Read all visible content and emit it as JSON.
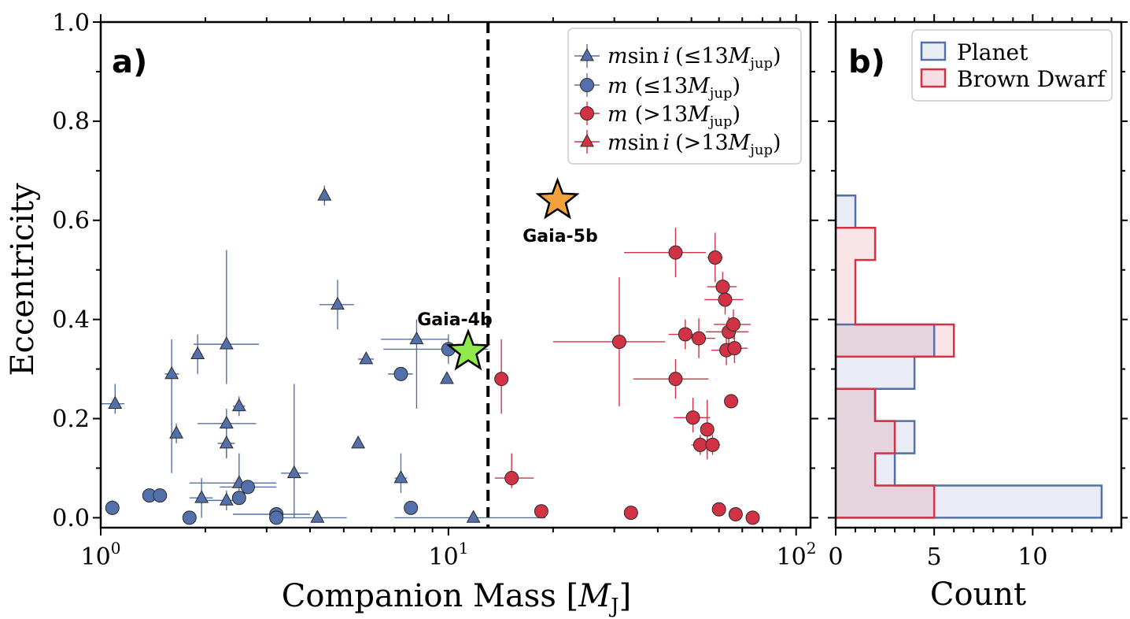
{
  "figure": {
    "colors": {
      "planet": "#5470ab",
      "brown_dwarf": "#d23244",
      "planet_fill": "#e9edf4",
      "bd_fill": "#f5dfe3",
      "overlap_fill": "#c9b1bf",
      "gaia4b_star": "#8fea4b",
      "gaia5b_star": "#f2a23a",
      "frame": "#000000"
    }
  },
  "chart_data": [
    {
      "id": "a",
      "type": "scatter",
      "panel_label": "a)",
      "xlabel_text": "Companion Mass [",
      "xlabel_italic": "M",
      "xlabel_sub": "J",
      "xlabel_end": "]",
      "ylabel": "Eccentricity",
      "xscale": "log",
      "xlim": [
        1,
        110
      ],
      "ylim": [
        -0.02,
        1.0
      ],
      "xticks": [
        {
          "base": "10",
          "exp": "0",
          "value": 1
        },
        {
          "base": "10",
          "exp": "1",
          "value": 10
        },
        {
          "base": "10",
          "exp": "2",
          "value": 100
        }
      ],
      "yticks": [
        "0.0",
        "0.2",
        "0.4",
        "0.6",
        "0.8",
        "1.0"
      ],
      "divider_mass": 13,
      "legend": {
        "placement": "top-right",
        "entries": [
          {
            "name": "m sin i (≤13 Mjup)",
            "pre": "m",
            "mid": "sin",
            "i": "i",
            "cond": "(≤13",
            "M": "M",
            "sub": "jup",
            "close": ")",
            "marker": "triangle",
            "color": "planet"
          },
          {
            "name": "m (≤13 Mjup)",
            "pre": "m",
            "mid": "",
            "i": "",
            "cond": "(≤13",
            "M": "M",
            "sub": "jup",
            "close": ")",
            "marker": "circle",
            "color": "planet"
          },
          {
            "name": "m (>13 Mjup)",
            "pre": "m",
            "mid": "",
            "i": "",
            "cond": "(>13",
            "M": "M",
            "sub": "jup",
            "close": ")",
            "marker": "circle",
            "color": "brown_dwarf"
          },
          {
            "name": "m sin i (>13 Mjup)",
            "pre": "m",
            "mid": "sin",
            "i": "i",
            "cond": "(>13",
            "M": "M",
            "sub": "jup",
            "close": ")",
            "marker": "triangle",
            "color": "brown_dwarf"
          }
        ]
      },
      "series": [
        {
          "name": "m sin i (≤13 Mjup)",
          "marker": "triangle",
          "color": "planet",
          "points": [
            {
              "x": 1.1,
              "y": 0.23,
              "xerr": [
                0.1,
                0.07
              ],
              "yerr": [
                0.02,
                0.04
              ]
            },
            {
              "x": 1.6,
              "y": 0.29,
              "xerr": [
                0.07,
                0.08
              ],
              "yerr": [
                0.2,
                0.07
              ]
            },
            {
              "x": 1.65,
              "y": 0.17,
              "xerr": [
                0.05,
                0.05
              ],
              "yerr": [
                0.02,
                0.02
              ]
            },
            {
              "x": 1.9,
              "y": 0.33,
              "xerr": [
                0.06,
                0.06
              ],
              "yerr": [
                0.04,
                0.04
              ]
            },
            {
              "x": 1.95,
              "y": 0.04,
              "xerr": [
                0.15,
                0.15
              ],
              "yerr": [
                0.04,
                0.04
              ]
            },
            {
              "x": 2.3,
              "y": 0.35,
              "xerr": [
                0.45,
                0.55
              ],
              "yerr": [
                0.08,
                0.19
              ]
            },
            {
              "x": 2.3,
              "y": 0.19,
              "xerr": [
                0.4,
                0.5
              ],
              "yerr": [
                0.07,
                0.03
              ]
            },
            {
              "x": 2.3,
              "y": 0.15,
              "xerr": [
                0.13,
                0.13
              ],
              "yerr": [
                0.03,
                0.03
              ]
            },
            {
              "x": 2.3,
              "y": 0.035,
              "xerr": [
                0.3,
                0.2
              ],
              "yerr": [
                0.02,
                0.02
              ]
            },
            {
              "x": 2.5,
              "y": 0.225,
              "xerr": [
                0.1,
                0.1
              ],
              "yerr": [
                0.02,
                0.02
              ]
            },
            {
              "x": 2.5,
              "y": 0.07,
              "xerr": [
                0.7,
                0.7
              ],
              "yerr": [
                0.03,
                0.06
              ]
            },
            {
              "x": 3.6,
              "y": 0.09,
              "xerr": [
                0.3,
                0.35
              ],
              "yerr": [
                0.09,
                0.18
              ]
            },
            {
              "x": 4.2,
              "y": 0.0,
              "xerr": [
                1.1,
                0.9
              ],
              "yerr": [
                0.0,
                0.0
              ]
            },
            {
              "x": 4.4,
              "y": 0.65,
              "xerr": [
                0.1,
                0.1
              ],
              "yerr": [
                0.02,
                0.02
              ]
            },
            {
              "x": 4.8,
              "y": 0.43,
              "xerr": [
                0.55,
                0.55
              ],
              "yerr": [
                0.05,
                0.05
              ]
            },
            {
              "x": 5.5,
              "y": 0.15,
              "xerr": [
                0.15,
                0.15
              ],
              "yerr": [
                0.01,
                0.01
              ]
            },
            {
              "x": 5.8,
              "y": 0.32,
              "xerr": [
                0.3,
                0.3
              ],
              "yerr": [
                0.01,
                0.01
              ]
            },
            {
              "x": 7.3,
              "y": 0.08,
              "xerr": [
                0.3,
                0.3
              ],
              "yerr": [
                0.03,
                0.05
              ]
            },
            {
              "x": 8.1,
              "y": 0.36,
              "xerr": [
                1.7,
                1.9
              ],
              "yerr": [
                0.14,
                0.04
              ]
            },
            {
              "x": 9.9,
              "y": 0.28,
              "xerr": [
                0.3,
                0.3
              ],
              "yerr": [
                0.01,
                0.01
              ]
            },
            {
              "x": 11.8,
              "y": 0.0,
              "xerr": [
                4.8,
                7.2
              ],
              "yerr": [
                0.0,
                0.0
              ]
            }
          ]
        },
        {
          "name": "m (≤13 Mjup)",
          "marker": "circle",
          "color": "planet",
          "points": [
            {
              "x": 1.08,
              "y": 0.02,
              "xerr": [
                0.03,
                0.03
              ],
              "yerr": [
                0.015,
                0.015
              ]
            },
            {
              "x": 1.38,
              "y": 0.045,
              "xerr": [
                0.06,
                0.06
              ],
              "yerr": [
                0.0,
                0.0
              ]
            },
            {
              "x": 1.48,
              "y": 0.045,
              "xerr": [
                0.04,
                0.04
              ],
              "yerr": [
                0.0,
                0.0
              ]
            },
            {
              "x": 1.8,
              "y": 0.0,
              "xerr": [
                0.05,
                0.05
              ],
              "yerr": [
                0.0,
                0.0
              ]
            },
            {
              "x": 2.5,
              "y": 0.04,
              "xerr": [
                0.1,
                0.1
              ],
              "yerr": [
                0.01,
                0.01
              ]
            },
            {
              "x": 2.65,
              "y": 0.062,
              "xerr": [
                0.45,
                0.55
              ],
              "yerr": [
                0.0,
                0.0
              ]
            },
            {
              "x": 3.2,
              "y": 0.007,
              "xerr": [
                0.8,
                0.8
              ],
              "yerr": [
                0.0,
                0.0
              ]
            },
            {
              "x": 3.2,
              "y": 0.0,
              "xerr": [
                0.15,
                0.15
              ],
              "yerr": [
                0.0,
                0.0
              ]
            },
            {
              "x": 7.3,
              "y": 0.29,
              "xerr": [
                0.6,
                0.6
              ],
              "yerr": [
                0.0,
                0.0
              ]
            },
            {
              "x": 7.8,
              "y": 0.02,
              "xerr": [
                0.1,
                0.1
              ],
              "yerr": [
                0.0,
                0.0
              ]
            },
            {
              "x": 10.0,
              "y": 0.34,
              "xerr": [
                3.5,
                3.0
              ],
              "yerr": [
                0.03,
                0.03
              ]
            }
          ]
        },
        {
          "name": "m (>13 Mjup)",
          "marker": "circle",
          "color": "brown_dwarf",
          "points": [
            {
              "x": 14.2,
              "y": 0.28,
              "xerr": [
                0.4,
                0.4
              ],
              "yerr": [
                0.07,
                0.08
              ]
            },
            {
              "x": 15.2,
              "y": 0.08,
              "xerr": [
                1.6,
                2.4
              ],
              "yerr": [
                0.02,
                0.05
              ]
            },
            {
              "x": 18.5,
              "y": 0.013,
              "xerr": [
                0.0,
                0.0
              ],
              "yerr": [
                0.0,
                0.0
              ]
            },
            {
              "x": 31.0,
              "y": 0.355,
              "xerr": [
                11.0,
                11.0
              ],
              "yerr": [
                0.13,
                0.13
              ]
            },
            {
              "x": 33.5,
              "y": 0.01,
              "xerr": [
                1.2,
                1.2
              ],
              "yerr": [
                0.0,
                0.0
              ]
            },
            {
              "x": 45.0,
              "y": 0.535,
              "xerr": [
                13.0,
                10.0
              ],
              "yerr": [
                0.05,
                0.05
              ]
            },
            {
              "x": 45.0,
              "y": 0.28,
              "xerr": [
                11.0,
                11.0
              ],
              "yerr": [
                0.04,
                0.04
              ]
            },
            {
              "x": 48.0,
              "y": 0.37,
              "xerr": [
                5.0,
                5.0
              ],
              "yerr": [
                0.03,
                0.03
              ]
            },
            {
              "x": 50.5,
              "y": 0.202,
              "xerr": [
                6.0,
                6.0
              ],
              "yerr": [
                0.03,
                0.04
              ]
            },
            {
              "x": 52.5,
              "y": 0.362,
              "xerr": [
                6.0,
                6.0
              ],
              "yerr": [
                0.04,
                0.04
              ]
            },
            {
              "x": 53.0,
              "y": 0.147,
              "xerr": [
                3.0,
                3.0
              ],
              "yerr": [
                0.02,
                0.02
              ]
            },
            {
              "x": 55.5,
              "y": 0.178,
              "xerr": [
                2.0,
                2.0
              ],
              "yerr": [
                0.06,
                0.06
              ]
            },
            {
              "x": 57.5,
              "y": 0.147,
              "xerr": [
                3.0,
                3.0
              ],
              "yerr": [
                0.02,
                0.02
              ]
            },
            {
              "x": 58.5,
              "y": 0.525,
              "xerr": [
                3.0,
                3.0
              ],
              "yerr": [
                0.05,
                0.05
              ]
            },
            {
              "x": 60.0,
              "y": 0.017,
              "xerr": [
                2.0,
                2.0
              ],
              "yerr": [
                0.0,
                0.0
              ]
            },
            {
              "x": 61.5,
              "y": 0.466,
              "xerr": [
                6.0,
                6.0
              ],
              "yerr": [
                0.03,
                0.03
              ]
            },
            {
              "x": 62.5,
              "y": 0.44,
              "xerr": [
                8.0,
                8.0
              ],
              "yerr": [
                0.03,
                0.03
              ]
            },
            {
              "x": 63.0,
              "y": 0.338,
              "xerr": [
                6.0,
                6.0
              ],
              "yerr": [
                0.03,
                0.03
              ]
            },
            {
              "x": 64.0,
              "y": 0.375,
              "xerr": [
                9.0,
                9.0
              ],
              "yerr": [
                0.03,
                0.03
              ]
            },
            {
              "x": 65.0,
              "y": 0.235,
              "xerr": [
                1.5,
                1.5
              ],
              "yerr": [
                0.0,
                0.0
              ]
            },
            {
              "x": 66.0,
              "y": 0.39,
              "xerr": [
                8.0,
                8.0
              ],
              "yerr": [
                0.03,
                0.03
              ]
            },
            {
              "x": 66.5,
              "y": 0.342,
              "xerr": [
                6.0,
                6.0
              ],
              "yerr": [
                0.03,
                0.03
              ]
            },
            {
              "x": 67.0,
              "y": 0.007,
              "xerr": [
                0.0,
                0.0
              ],
              "yerr": [
                0.0,
                0.0
              ]
            },
            {
              "x": 75.0,
              "y": 0.0,
              "xerr": [
                0.0,
                0.0
              ],
              "yerr": [
                0.0,
                0.0
              ]
            }
          ]
        },
        {
          "name": "m sin i (>13 Mjup)",
          "marker": "triangle",
          "color": "brown_dwarf",
          "points": []
        }
      ],
      "highlights": [
        {
          "name": "Gaia-4b",
          "x": 11.4,
          "y": 0.335,
          "color": "gaia4b_star",
          "label_position": "above-left"
        },
        {
          "name": "Gaia-5b",
          "x": 20.6,
          "y": 0.64,
          "color": "gaia5b_star",
          "label_position": "below"
        }
      ]
    },
    {
      "id": "b",
      "type": "histogram",
      "orientation": "horizontal",
      "panel_label": "b)",
      "xlabel": "Count",
      "xlim": [
        0,
        14.5
      ],
      "ylim": [
        -0.02,
        1.0
      ],
      "xticks": [
        "0",
        "5",
        "10"
      ],
      "xtick_values": [
        0,
        5,
        10
      ],
      "bin_edges": [
        0,
        0.065,
        0.13,
        0.195,
        0.26,
        0.325,
        0.39,
        0.455,
        0.52,
        0.585,
        0.65
      ],
      "legend": {
        "placement": "top-right",
        "entries": [
          {
            "name": "Planet",
            "color": "planet"
          },
          {
            "name": "Brown Dwarf",
            "color": "brown_dwarf"
          }
        ]
      },
      "series": [
        {
          "name": "Planet",
          "color": "planet",
          "counts": [
            13.5,
            3,
            4,
            2,
            4,
            5,
            0,
            0,
            0,
            1
          ]
        },
        {
          "name": "Brown Dwarf",
          "color": "brown_dwarf",
          "counts": [
            5,
            2,
            3,
            2,
            0,
            6,
            1,
            1,
            2,
            0
          ]
        }
      ]
    }
  ]
}
